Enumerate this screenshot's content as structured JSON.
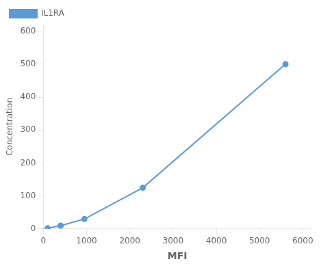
{
  "chart_data": {
    "type": "line",
    "x": [
      100,
      400,
      950,
      2300,
      5600
    ],
    "series": [
      {
        "name": "IL1RA",
        "color": "#5B9BD5",
        "values": [
          2,
          10,
          30,
          125,
          500
        ],
        "marker": "circle",
        "line_style": "solid"
      }
    ],
    "xlabel": "MFI",
    "ylabel": "Concentration",
    "xlim": [
      0,
      6200
    ],
    "ylim": [
      0,
      620
    ],
    "xticks": [
      0,
      1000,
      2000,
      3000,
      4000,
      5000,
      6000
    ],
    "yticks": [
      0,
      100,
      200,
      300,
      400,
      500,
      600
    ],
    "grid": false,
    "legend": "upper left"
  }
}
